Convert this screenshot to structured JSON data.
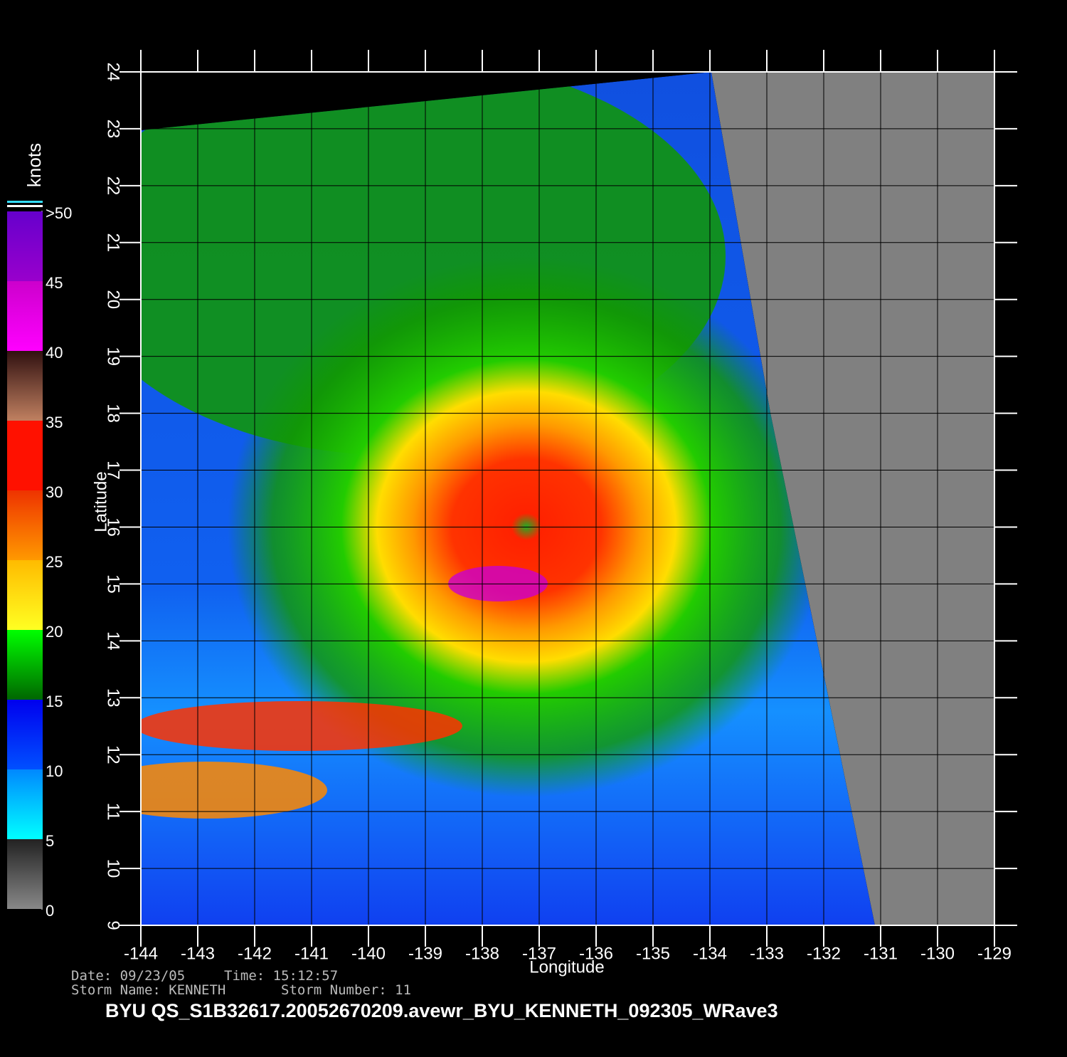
{
  "map": {
    "xlabel": "Longitude",
    "ylabel": "Latitude",
    "xlim": [
      -144,
      -129
    ],
    "xticks": [
      -144,
      -143,
      -142,
      -141,
      -140,
      -139,
      -138,
      -137,
      -136,
      -135,
      -134,
      -133,
      -132,
      -131,
      -130,
      -129
    ],
    "ylim": [
      9,
      24
    ],
    "yticks": [
      9,
      10,
      11,
      12,
      13,
      14,
      15,
      16,
      17,
      18,
      19,
      20,
      21,
      22,
      23,
      24
    ]
  },
  "colorbar": {
    "label": "knots",
    "lim": [
      0,
      50
    ],
    "ticks": [
      0,
      5,
      10,
      15,
      20,
      25,
      30,
      35,
      40,
      45,
      {
        "value": 50,
        "label": ">50"
      }
    ]
  },
  "info": {
    "date": "Date: 09/23/05",
    "time": "Time: 15:12:57",
    "storm_name": "Storm  Name: KENNETH",
    "storm_number": "Storm  Number: 11"
  },
  "title": "BYU  QS_S1B32617.20052670209.avewr_BYU_KENNETH_092305_WRave3"
}
